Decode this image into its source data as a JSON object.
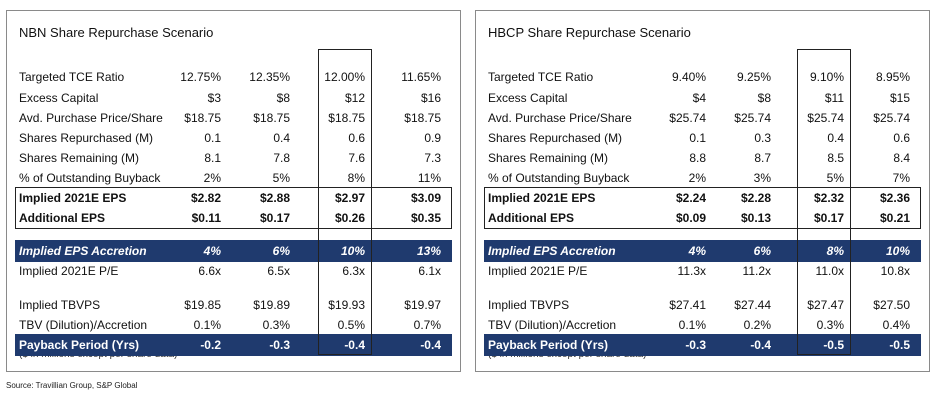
{
  "panels": [
    {
      "title": "NBN Share Repurchase Scenario",
      "rows": [
        {
          "label": "Targeted TCE Ratio",
          "values": [
            "12.75%",
            "12.35%",
            "12.00%",
            "11.65%"
          ]
        },
        {
          "label": "Excess Capital",
          "values": [
            "$3",
            "$8",
            "$12",
            "$16"
          ]
        },
        {
          "label": "Avd. Purchase Price/Share",
          "values": [
            "$18.75",
            "$18.75",
            "$18.75",
            "$18.75"
          ]
        },
        {
          "label": "Shares Repurchased (M)",
          "values": [
            "0.1",
            "0.4",
            "0.6",
            "0.9"
          ]
        },
        {
          "label": "Shares Remaining (M)",
          "values": [
            "8.1",
            "7.8",
            "7.6",
            "7.3"
          ]
        },
        {
          "label": "% of Outstanding Buyback",
          "values": [
            "2%",
            "5%",
            "8%",
            "11%"
          ]
        },
        {
          "label": "Implied 2021E EPS",
          "values": [
            "$2.82",
            "$2.88",
            "$2.97",
            "$3.09"
          ]
        },
        {
          "label": "Additional EPS",
          "values": [
            "$0.11",
            "$0.17",
            "$0.26",
            "$0.35"
          ]
        },
        {
          "label": "Implied EPS Accretion",
          "values": [
            "4%",
            "6%",
            "10%",
            "13%"
          ]
        },
        {
          "label": "Implied 2021E P/E",
          "values": [
            "6.6x",
            "6.5x",
            "6.3x",
            "6.1x"
          ]
        },
        {
          "label": "Implied TBVPS",
          "values": [
            "$19.85",
            "$19.89",
            "$19.93",
            "$19.97"
          ]
        },
        {
          "label": "TBV (Dilution)/Accretion",
          "values": [
            "0.1%",
            "0.3%",
            "0.5%",
            "0.7%"
          ]
        },
        {
          "label": "Payback Period (Yrs)",
          "values": [
            "-0.2",
            "-0.3",
            "-0.4",
            "-0.4"
          ]
        }
      ],
      "footnote": "($ in millions except per share data)"
    },
    {
      "title": "HBCP Share Repurchase Scenario",
      "rows": [
        {
          "label": "Targeted TCE Ratio",
          "values": [
            "9.40%",
            "9.25%",
            "9.10%",
            "8.95%"
          ]
        },
        {
          "label": "Excess Capital",
          "values": [
            "$4",
            "$8",
            "$11",
            "$15"
          ]
        },
        {
          "label": "Avd. Purchase Price/Share",
          "values": [
            "$25.74",
            "$25.74",
            "$25.74",
            "$25.74"
          ]
        },
        {
          "label": "Shares Repurchased (M)",
          "values": [
            "0.1",
            "0.3",
            "0.4",
            "0.6"
          ]
        },
        {
          "label": "Shares Remaining (M)",
          "values": [
            "8.8",
            "8.7",
            "8.5",
            "8.4"
          ]
        },
        {
          "label": "% of Outstanding Buyback",
          "values": [
            "2%",
            "3%",
            "5%",
            "7%"
          ]
        },
        {
          "label": "Implied 2021E EPS",
          "values": [
            "$2.24",
            "$2.28",
            "$2.32",
            "$2.36"
          ]
        },
        {
          "label": "Additional EPS",
          "values": [
            "$0.09",
            "$0.13",
            "$0.17",
            "$0.21"
          ]
        },
        {
          "label": "Implied EPS Accretion",
          "values": [
            "4%",
            "6%",
            "8%",
            "10%"
          ]
        },
        {
          "label": "Implied 2021E P/E",
          "values": [
            "11.3x",
            "11.2x",
            "11.0x",
            "10.8x"
          ]
        },
        {
          "label": "Implied TBVPS",
          "values": [
            "$27.41",
            "$27.44",
            "$27.47",
            "$27.50"
          ]
        },
        {
          "label": "TBV (Dilution)/Accretion",
          "values": [
            "0.1%",
            "0.2%",
            "0.3%",
            "0.4%"
          ]
        },
        {
          "label": "Payback Period (Yrs)",
          "values": [
            "-0.3",
            "-0.4",
            "-0.5",
            "-0.5"
          ]
        }
      ],
      "footnote": "($ in millions except per share data)"
    }
  ],
  "source": "Source: Travillian Group, S&P Global",
  "colors": {
    "header_band": "#1f3a6e",
    "band_text": "#ffffff"
  }
}
